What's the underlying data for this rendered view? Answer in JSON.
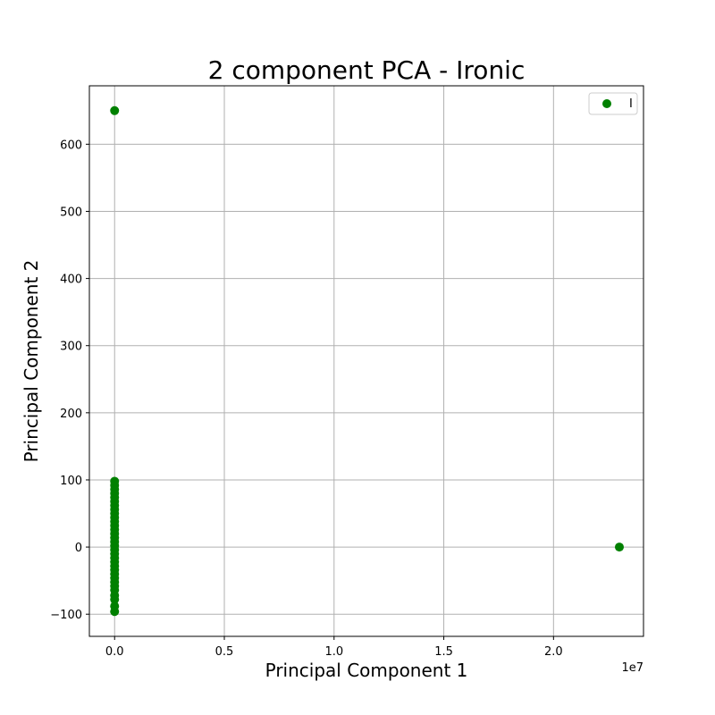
{
  "chart_data": {
    "type": "scatter",
    "title": "2 component PCA - Ironic",
    "xlabel": "Principal Component 1",
    "ylabel": "Principal Component 2",
    "x_offset_label": "1e7",
    "xlim": [
      -0.115,
      2.41
    ],
    "ylim": [
      -133,
      687
    ],
    "x_ticks": [
      0.0,
      0.5,
      1.0,
      1.5,
      2.0
    ],
    "x_tick_labels": [
      "0.0",
      "0.5",
      "1.0",
      "1.5",
      "2.0"
    ],
    "y_ticks": [
      -100,
      0,
      100,
      200,
      300,
      400,
      500,
      600
    ],
    "y_tick_labels": [
      "−100",
      "0",
      "100",
      "200",
      "300",
      "400",
      "500",
      "600"
    ],
    "grid": true,
    "legend": {
      "position": "top-right",
      "entries": [
        "I"
      ]
    },
    "series": [
      {
        "name": "I",
        "color": "#008000",
        "points": [
          [
            0.0,
            650
          ],
          [
            2.3,
            0
          ],
          [
            0.0,
            98
          ],
          [
            0.0,
            92
          ],
          [
            0.0,
            86
          ],
          [
            0.0,
            80
          ],
          [
            0.0,
            74
          ],
          [
            0.0,
            68
          ],
          [
            0.0,
            62
          ],
          [
            0.0,
            56
          ],
          [
            0.0,
            50
          ],
          [
            0.0,
            44
          ],
          [
            0.0,
            38
          ],
          [
            0.0,
            32
          ],
          [
            0.0,
            26
          ],
          [
            0.0,
            20
          ],
          [
            0.0,
            14
          ],
          [
            0.0,
            8
          ],
          [
            0.0,
            2
          ],
          [
            0.0,
            -4
          ],
          [
            0.0,
            -10
          ],
          [
            0.0,
            -16
          ],
          [
            0.0,
            -22
          ],
          [
            0.0,
            -28
          ],
          [
            0.0,
            -34
          ],
          [
            0.0,
            -40
          ],
          [
            0.0,
            -46
          ],
          [
            0.0,
            -52
          ],
          [
            0.0,
            -58
          ],
          [
            0.0,
            -64
          ],
          [
            0.0,
            -72
          ],
          [
            0.0,
            -78
          ],
          [
            0.0,
            -88
          ],
          [
            0.0,
            -96
          ]
        ]
      }
    ]
  }
}
